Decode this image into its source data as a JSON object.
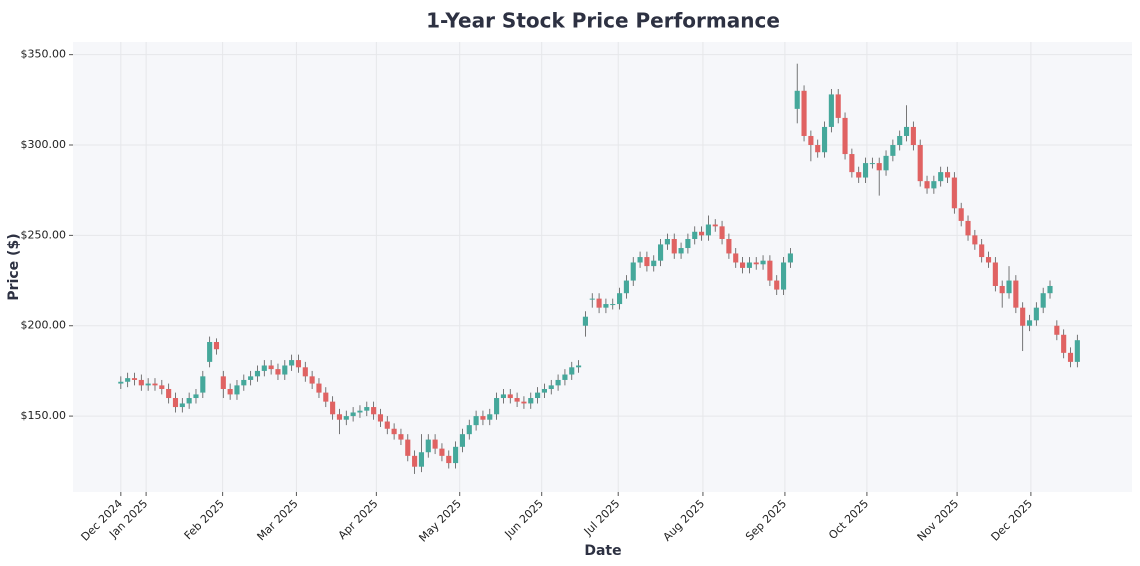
{
  "chart_data": {
    "type": "candlestick",
    "title": "1-Year Stock Price Performance",
    "x_label": "Date",
    "y_label": "Price ($)",
    "up_color": "#45a89b",
    "down_color": "#e06262",
    "grid": true,
    "ylim": [
      108,
      357
    ],
    "yticks": [
      {
        "value": 150,
        "label": "$150.00"
      },
      {
        "value": 200,
        "label": "$200.00"
      },
      {
        "value": 250,
        "label": "$250.00"
      },
      {
        "value": 300,
        "label": "$300.00"
      },
      {
        "value": 350,
        "label": "$350.00"
      }
    ],
    "xlim": [
      -7,
      148
    ],
    "xticks": [
      {
        "value": 0,
        "label": "Dec 2024"
      },
      {
        "value": 3.7,
        "label": "Jan 2025"
      },
      {
        "value": 14.9,
        "label": "Feb 2025"
      },
      {
        "value": 25.7,
        "label": "Mar 2025"
      },
      {
        "value": 37.4,
        "label": "Apr 2025"
      },
      {
        "value": 49.6,
        "label": "May 2025"
      },
      {
        "value": 61.6,
        "label": "Jun 2025"
      },
      {
        "value": 72.8,
        "label": "Jul 2025"
      },
      {
        "value": 85.2,
        "label": "Aug 2025"
      },
      {
        "value": 97.2,
        "label": "Sep 2025"
      },
      {
        "value": 109.2,
        "label": "Oct 2025"
      },
      {
        "value": 122.4,
        "label": "Nov 2025"
      },
      {
        "value": 133.2,
        "label": "Dec 2025"
      }
    ],
    "open": [
      168,
      169,
      171,
      170,
      167,
      168,
      167,
      165,
      160,
      155,
      157,
      160,
      163,
      180,
      191,
      172,
      165,
      162,
      167,
      170,
      172,
      175,
      178,
      176,
      173,
      178,
      181,
      177,
      172,
      168,
      163,
      158,
      151,
      148,
      150,
      152,
      153,
      155,
      151,
      147,
      143,
      140,
      137,
      128,
      122,
      130,
      137,
      132,
      128,
      124,
      133,
      140,
      145,
      150,
      148,
      151,
      160,
      162,
      160,
      158,
      157,
      160,
      163,
      165,
      167,
      170,
      173,
      177,
      200,
      215,
      215,
      210,
      212,
      212,
      218,
      225,
      235,
      238,
      233,
      236,
      245,
      248,
      240,
      243,
      248,
      252,
      250,
      256,
      255,
      248,
      240,
      235,
      232,
      235,
      234,
      236,
      225,
      220,
      235,
      320,
      330,
      305,
      300,
      296,
      310,
      328,
      315,
      295,
      285,
      282,
      290,
      290,
      286,
      294,
      300,
      305,
      310,
      300,
      280,
      276,
      280,
      285,
      282,
      265,
      258,
      250,
      245,
      238,
      235,
      222,
      218,
      225,
      210,
      200,
      203,
      210,
      218,
      200,
      195,
      185,
      180
    ],
    "high": [
      172,
      174,
      174,
      173,
      171,
      171,
      170,
      168,
      163,
      160,
      163,
      165,
      175,
      194,
      193,
      175,
      168,
      170,
      173,
      175,
      178,
      181,
      181,
      179,
      181,
      184,
      184,
      180,
      175,
      171,
      166,
      161,
      154,
      153,
      155,
      156,
      158,
      158,
      154,
      150,
      146,
      143,
      140,
      131,
      140,
      140,
      140,
      135,
      131,
      136,
      143,
      148,
      153,
      153,
      154,
      163,
      165,
      165,
      163,
      161,
      163,
      166,
      168,
      170,
      173,
      176,
      180,
      181,
      208,
      218,
      218,
      215,
      215,
      221,
      228,
      238,
      241,
      241,
      239,
      248,
      251,
      251,
      246,
      251,
      255,
      255,
      261,
      259,
      258,
      251,
      243,
      238,
      238,
      238,
      239,
      239,
      228,
      238,
      243,
      345,
      333,
      308,
      303,
      313,
      331,
      331,
      318,
      298,
      288,
      293,
      293,
      293,
      297,
      303,
      308,
      322,
      313,
      303,
      283,
      283,
      288,
      288,
      285,
      268,
      261,
      253,
      248,
      241,
      238,
      225,
      233,
      228,
      213,
      206,
      213,
      221,
      225,
      203,
      198,
      188,
      195
    ],
    "low": [
      165,
      166,
      167,
      164,
      164,
      164,
      162,
      157,
      152,
      152,
      154,
      157,
      160,
      177,
      184,
      160,
      159,
      159,
      164,
      167,
      169,
      172,
      173,
      170,
      170,
      175,
      174,
      169,
      165,
      160,
      155,
      148,
      140,
      145,
      147,
      149,
      150,
      148,
      144,
      140,
      137,
      134,
      125,
      118,
      119,
      127,
      129,
      125,
      121,
      121,
      130,
      137,
      142,
      145,
      145,
      148,
      157,
      157,
      155,
      154,
      154,
      157,
      160,
      162,
      164,
      167,
      170,
      174,
      194,
      210,
      207,
      207,
      209,
      209,
      215,
      222,
      232,
      230,
      230,
      233,
      242,
      237,
      237,
      240,
      245,
      247,
      247,
      252,
      245,
      237,
      232,
      229,
      229,
      231,
      231,
      222,
      217,
      217,
      232,
      312,
      302,
      291,
      293,
      293,
      307,
      312,
      292,
      282,
      279,
      279,
      287,
      272,
      283,
      291,
      297,
      302,
      297,
      277,
      273,
      273,
      277,
      279,
      262,
      255,
      247,
      242,
      235,
      232,
      219,
      210,
      215,
      207,
      186,
      197,
      200,
      207,
      215,
      192,
      182,
      177,
      177
    ],
    "close": [
      169,
      171,
      170,
      167,
      168,
      167,
      165,
      160,
      155,
      157,
      160,
      162,
      172,
      191,
      187,
      165,
      162,
      167,
      170,
      172,
      175,
      178,
      176,
      173,
      178,
      181,
      177,
      172,
      168,
      163,
      158,
      151,
      148,
      150,
      152,
      153,
      155,
      151,
      147,
      143,
      140,
      137,
      128,
      122,
      130,
      137,
      132,
      128,
      124,
      133,
      140,
      145,
      150,
      148,
      151,
      160,
      162,
      160,
      158,
      157,
      160,
      163,
      165,
      167,
      170,
      173,
      177,
      178,
      205,
      215,
      210,
      212,
      212,
      218,
      225,
      235,
      238,
      233,
      236,
      245,
      248,
      240,
      243,
      248,
      252,
      250,
      256,
      255,
      248,
      240,
      235,
      232,
      235,
      234,
      236,
      225,
      220,
      235,
      240,
      330,
      305,
      300,
      296,
      310,
      328,
      315,
      295,
      285,
      282,
      290,
      290,
      286,
      294,
      300,
      305,
      310,
      300,
      280,
      276,
      280,
      285,
      282,
      265,
      258,
      250,
      245,
      238,
      235,
      222,
      218,
      225,
      210,
      200,
      203,
      210,
      218,
      222,
      195,
      185,
      180,
      192
    ]
  }
}
